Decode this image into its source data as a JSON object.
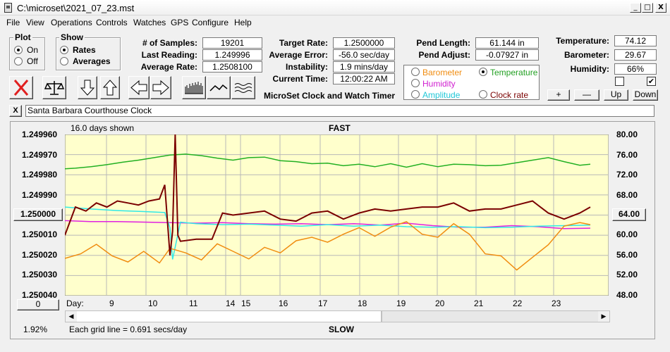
{
  "window": {
    "title": "C:\\microset\\2021_07_23.mst",
    "min": "_",
    "max": "□",
    "close": "X"
  },
  "menu": [
    "File",
    "View",
    "Operations",
    "Controls",
    "Watches",
    "GPS",
    "Configure",
    "Help"
  ],
  "plot": {
    "title": "Plot",
    "on": "On",
    "off": "Off",
    "selected": "On"
  },
  "show": {
    "title": "Show",
    "rates": "Rates",
    "averages": "Averages",
    "selected": "Rates"
  },
  "stats": {
    "samples_label": "# of Samples:",
    "samples": "19201",
    "last_label": "Last Reading:",
    "last": "1.249996",
    "avg_label": "Average Rate:",
    "avg": "1.2508100"
  },
  "target": {
    "target_label": "Target Rate:",
    "target": "1.2500000",
    "error_label": "Average Error:",
    "error": "-56.0 sec/day",
    "instab_label": "Instability:",
    "instab": "1.9 mins/day",
    "time_label": "Current Time:",
    "time": "12:00:22 AM"
  },
  "pend": {
    "length_label": "Pend Length:",
    "length": "61.144 in",
    "adjust_label": "Pend Adjust:",
    "adjust": "-0.07927 in"
  },
  "env": {
    "temp_label": "Temperature:",
    "temp": "74.12",
    "baro_label": "Barometer:",
    "baro": "29.67",
    "hum_label": "Humidity:",
    "hum": "66%"
  },
  "app_title": "MicroSet Clock and Watch Timer",
  "sensor_select": {
    "barometer": "Barometer",
    "temperature": "Temperature",
    "humidity": "Humidity",
    "amplitude": "Amplitude",
    "clock_rate": "Clock rate",
    "selected": "Temperature"
  },
  "adjust_buttons": {
    "plus": "+",
    "minus": "—",
    "up": "Up",
    "down": "Down"
  },
  "description": "Santa Barbara Courthouse Clock",
  "close_x": "X",
  "chart": {
    "days_shown": "16.0 days shown",
    "top_label": "FAST",
    "bottom_label": "SLOW",
    "center_left": "1.250000",
    "center_right": "64.00",
    "left_bottom_button": "0",
    "grid_note": "Each grid line = 0.691 secs/day",
    "percent": "1.92%",
    "day_label": "Day:",
    "colors": {
      "background": "#ffffcc",
      "rate": "#7a0000",
      "temperature": "#22b022",
      "humidity": "#e020e0",
      "amplitude": "#30e8e8",
      "barometer": "#f08c10"
    }
  },
  "chart_data": {
    "type": "line",
    "title": "FAST",
    "xlabel": "Day:",
    "x_ticks": [
      "9",
      "10",
      "11",
      "14",
      "15",
      "16",
      "17",
      "18",
      "19",
      "20",
      "21",
      "22",
      "23"
    ],
    "y_left_ticks": [
      "1.249960",
      "1.249970",
      "1.249980",
      "1.249990",
      "1.250000",
      "1.250010",
      "1.250020",
      "1.250030",
      "1.250040"
    ],
    "y_right_ticks": [
      "80.00",
      "76.00",
      "72.00",
      "68.00",
      "64.00",
      "60.00",
      "56.00",
      "52.00",
      "48.00"
    ],
    "ylim_left": [
      1.24996,
      1.25004
    ],
    "ylim_right": [
      48,
      80
    ],
    "grid": true,
    "series": [
      {
        "key": "temperature",
        "color": "#22b022",
        "axis": "right",
        "x": [
          0,
          0.02,
          0.05,
          0.08,
          0.11,
          0.14,
          0.17,
          0.2,
          0.23,
          0.26,
          0.29,
          0.32,
          0.35,
          0.38,
          0.41,
          0.44,
          0.47,
          0.5,
          0.53,
          0.56,
          0.59,
          0.62,
          0.65,
          0.68,
          0.71,
          0.74,
          0.77,
          0.8,
          0.83,
          0.86,
          0.89,
          0.92,
          0.95,
          0.98,
          1
        ],
        "y": [
          73.2,
          73.3,
          73.6,
          74.0,
          74.5,
          74.9,
          75.4,
          75.9,
          76.1,
          75.8,
          75.3,
          74.9,
          75.4,
          75.5,
          74.8,
          74.6,
          74.2,
          74.3,
          73.8,
          74.1,
          73.6,
          74.2,
          73.5,
          74.2,
          73.6,
          74.1,
          74.0,
          73.8,
          73.9,
          74.4,
          74.9,
          75.4,
          74.6,
          73.9,
          74.1
        ]
      },
      {
        "key": "humidity",
        "color": "#e020e0",
        "axis": "right",
        "x": [
          0,
          0.05,
          0.1,
          0.15,
          0.2,
          0.25,
          0.3,
          0.35,
          0.4,
          0.45,
          0.5,
          0.55,
          0.6,
          0.65,
          0.7,
          0.75,
          0.8,
          0.85,
          0.9,
          0.95,
          1
        ],
        "y": [
          62.9,
          62.7,
          62.7,
          62.6,
          62.5,
          62.4,
          62.5,
          62.3,
          62.2,
          62.3,
          62.1,
          62.3,
          62.0,
          62.4,
          61.9,
          61.6,
          61.6,
          61.9,
          61.7,
          61.3,
          61.4
        ]
      },
      {
        "key": "amplitude",
        "color": "#30e8e8",
        "axis": "right",
        "x": [
          0,
          0.05,
          0.1,
          0.15,
          0.19,
          0.2,
          0.205,
          0.22,
          0.25,
          0.3,
          0.35,
          0.4,
          0.45,
          0.5,
          0.55,
          0.6,
          0.65,
          0.7,
          0.75,
          0.8,
          0.85,
          0.9,
          0.95,
          1
        ],
        "y": [
          65.6,
          65.2,
          64.9,
          64.7,
          64.5,
          61.5,
          55.2,
          62.6,
          62.3,
          62.1,
          62.2,
          62.0,
          61.8,
          62.1,
          61.8,
          62.0,
          61.7,
          61.6,
          61.7,
          61.5,
          61.6,
          61.8,
          61.9,
          62.0
        ]
      },
      {
        "key": "barometer",
        "color": "#f08c10",
        "axis": "right",
        "x": [
          0,
          0.03,
          0.06,
          0.09,
          0.12,
          0.15,
          0.18,
          0.2,
          0.23,
          0.26,
          0.29,
          0.32,
          0.35,
          0.38,
          0.41,
          0.44,
          0.47,
          0.5,
          0.53,
          0.56,
          0.59,
          0.62,
          0.65,
          0.68,
          0.71,
          0.74,
          0.77,
          0.8,
          0.83,
          0.86,
          0.89,
          0.92,
          0.95,
          0.98,
          1
        ],
        "y": [
          55.4,
          56.3,
          58.2,
          55.9,
          54.7,
          56.8,
          54.5,
          57.4,
          56.5,
          55.1,
          58.3,
          56.8,
          55.3,
          57.6,
          56.5,
          58.9,
          59.6,
          58.6,
          60.2,
          61.5,
          59.8,
          61.6,
          62.7,
          60.2,
          59.6,
          62.3,
          60.2,
          56.3,
          55.9,
          53.1,
          55.6,
          58.1,
          61.8,
          62.5,
          62.1
        ]
      },
      {
        "key": "rate",
        "color": "#7a0000",
        "axis": "left",
        "x": [
          0,
          0.02,
          0.04,
          0.06,
          0.08,
          0.1,
          0.12,
          0.14,
          0.16,
          0.18,
          0.19,
          0.2,
          0.205,
          0.21,
          0.215,
          0.22,
          0.25,
          0.28,
          0.3,
          0.32,
          0.35,
          0.38,
          0.41,
          0.44,
          0.47,
          0.5,
          0.53,
          0.56,
          0.59,
          0.62,
          0.65,
          0.68,
          0.71,
          0.74,
          0.77,
          0.8,
          0.83,
          0.86,
          0.89,
          0.92,
          0.95,
          0.98,
          1
        ],
        "y": [
          1.25001,
          1.249996,
          1.249998,
          1.249994,
          1.249996,
          1.249993,
          1.249994,
          1.249995,
          1.249993,
          1.249992,
          1.249985,
          1.25002,
          1.250008,
          1.24996,
          1.25001,
          1.250013,
          1.250012,
          1.250012,
          1.249999,
          1.25,
          1.249999,
          1.249998,
          1.250002,
          1.250003,
          1.249999,
          1.249998,
          1.250002,
          1.249999,
          1.249997,
          1.249998,
          1.249997,
          1.249996,
          1.249996,
          1.249994,
          1.249998,
          1.249997,
          1.249997,
          1.249995,
          1.249993,
          1.249999,
          1.250002,
          1.249999,
          1.249996
        ]
      }
    ]
  }
}
